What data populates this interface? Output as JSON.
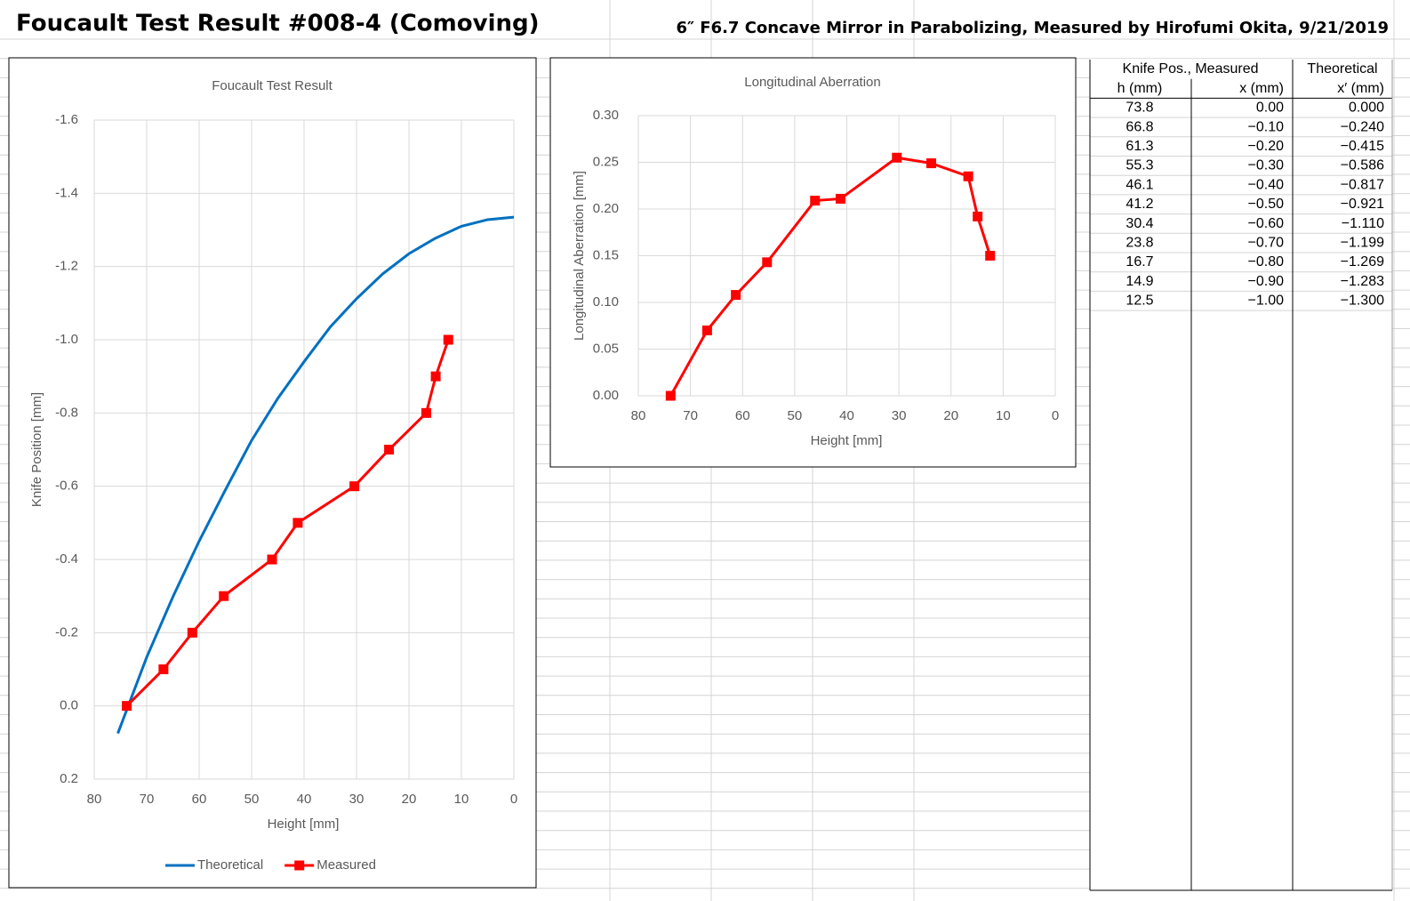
{
  "header": {
    "title": "Foucault Test Result #008-4 (Comoving)",
    "subtitle": "6″ F6.7 Concave Mirror in Parabolizing, Measured by Hirofumi Okita, 9/21/2019"
  },
  "chart_data": [
    {
      "type": "line",
      "title": "Foucault Test Result",
      "x_label": "Height [mm]",
      "y_label": "Knife Position [mm]",
      "xlim": [
        80,
        0
      ],
      "xticks": [
        80,
        70,
        60,
        50,
        40,
        30,
        20,
        10,
        0
      ],
      "ylim": [
        0.2,
        -1.6
      ],
      "yticks": [
        0.2,
        {
          "value": 0,
          "label": "0.0"
        },
        -0.2,
        -0.4,
        -0.6,
        -0.8,
        {
          "value": -1,
          "label": "-1.0"
        },
        -1.2,
        -1.4,
        -1.6
      ],
      "grid": true,
      "legend": "bottom",
      "series": [
        {
          "name": "Theoretical",
          "color": "#0070c0",
          "marker": "none",
          "x": [
            75.5,
            70,
            65,
            60,
            55,
            50,
            45,
            40,
            35,
            30,
            25,
            20,
            15,
            10,
            5,
            0
          ],
          "values": [
            0.075,
            -0.133,
            -0.298,
            -0.45,
            -0.59,
            -0.725,
            -0.84,
            -0.94,
            -1.035,
            -1.112,
            -1.18,
            -1.235,
            -1.277,
            -1.31,
            -1.328,
            -1.335
          ]
        },
        {
          "name": "Measured",
          "color": "#ff0000",
          "marker": "square",
          "x": [
            73.8,
            66.8,
            61.3,
            55.3,
            46.1,
            41.2,
            30.4,
            23.8,
            16.7,
            14.9,
            12.5
          ],
          "values": [
            0,
            -0.1,
            -0.2,
            -0.3,
            -0.4,
            -0.5,
            -0.6,
            -0.7,
            -0.8,
            -0.9,
            -1.0
          ]
        }
      ]
    },
    {
      "type": "line",
      "title": "Longitudinal Aberration",
      "x_label": "Height [mm]",
      "y_label": "Longitudinal Aberration [mm]",
      "xlim": [
        80,
        0
      ],
      "xticks": [
        80,
        70,
        60,
        50,
        40,
        30,
        20,
        10,
        0
      ],
      "ylim": [
        0,
        0.3
      ],
      "yticks": [
        {
          "value": 0,
          "label": "0.00"
        },
        {
          "value": 0.05,
          "label": "0.05"
        },
        {
          "value": 0.1,
          "label": "0.10"
        },
        {
          "value": 0.15,
          "label": "0.15"
        },
        {
          "value": 0.2,
          "label": "0.20"
        },
        {
          "value": 0.25,
          "label": "0.25"
        },
        {
          "value": 0.3,
          "label": "0.30"
        }
      ],
      "grid": true,
      "series": [
        {
          "color": "#ff0000",
          "marker": "square",
          "x": [
            73.8,
            66.8,
            61.3,
            55.3,
            46.1,
            41.2,
            30.4,
            23.8,
            16.7,
            14.9,
            12.5
          ],
          "values": [
            0,
            0.07,
            0.108,
            0.143,
            0.209,
            0.211,
            0.255,
            0.249,
            0.235,
            0.192,
            0.15
          ]
        }
      ]
    }
  ],
  "table": {
    "group_headers": [
      "Knife Pos., Measured",
      "Theoretical"
    ],
    "columns": [
      "h (mm)",
      "x (mm)",
      "x′ (mm)"
    ],
    "rows": [
      [
        "73.8",
        "0.00",
        "0.000"
      ],
      [
        "66.8",
        "−0.10",
        "−0.240"
      ],
      [
        "61.3",
        "−0.20",
        "−0.415"
      ],
      [
        "55.3",
        "−0.30",
        "−0.586"
      ],
      [
        "46.1",
        "−0.40",
        "−0.817"
      ],
      [
        "41.2",
        "−0.50",
        "−0.921"
      ],
      [
        "30.4",
        "−0.60",
        "−1.110"
      ],
      [
        "23.8",
        "−0.70",
        "−1.199"
      ],
      [
        "16.7",
        "−0.80",
        "−1.269"
      ],
      [
        "14.9",
        "−0.90",
        "−1.283"
      ],
      [
        "12.5",
        "−1.00",
        "−1.300"
      ]
    ]
  }
}
